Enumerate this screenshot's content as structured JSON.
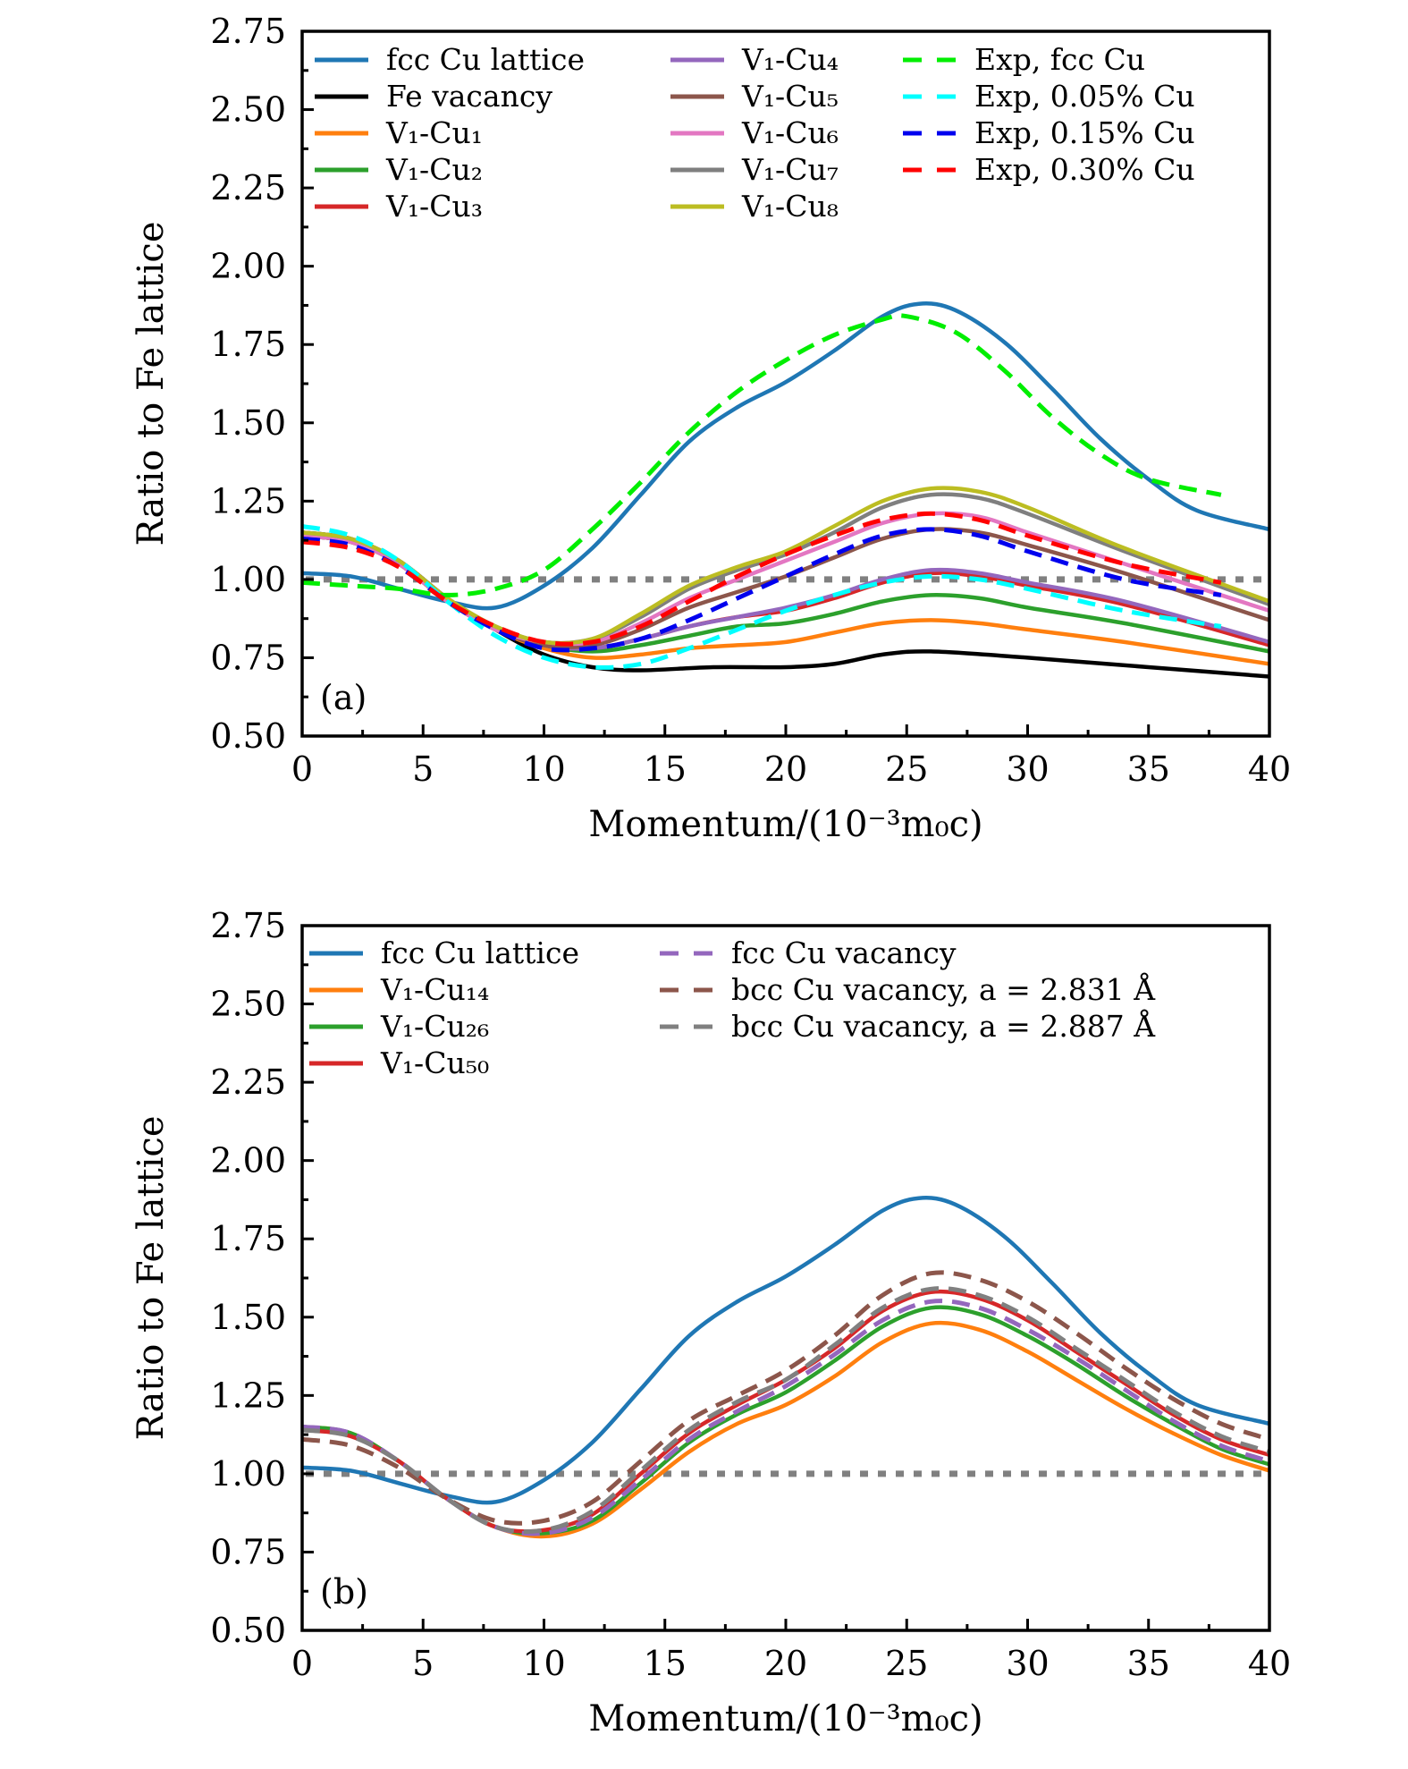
{
  "chart_data": [
    {
      "type": "line",
      "panel_label": "(a)",
      "title": "",
      "xlabel": "Momentum/(10⁻³m₀c)",
      "ylabel": "Ratio to Fe lattice",
      "xlim": [
        0,
        40
      ],
      "ylim": [
        0.5,
        2.75
      ],
      "xticks": [
        "0",
        "5",
        "10",
        "15",
        "20",
        "25",
        "30",
        "35",
        "40"
      ],
      "yticks": [
        "0.50",
        "0.75",
        "1.00",
        "1.25",
        "1.50",
        "1.75",
        "2.00",
        "2.25",
        "2.50",
        "2.75"
      ],
      "grid": false,
      "legend_position": "top",
      "reference_line": {
        "y": 1.0,
        "color": "#808080",
        "style": "dotted"
      },
      "series": [
        {
          "name": "fcc Cu lattice",
          "color": "#1f77b4",
          "style": "solid",
          "x": [
            0,
            2,
            4,
            6,
            8,
            10,
            12,
            14,
            16,
            18,
            20,
            22,
            24,
            25.5,
            27,
            29,
            31,
            33,
            35,
            37,
            40
          ],
          "y": [
            1.02,
            1.01,
            0.97,
            0.93,
            0.91,
            0.98,
            1.1,
            1.27,
            1.44,
            1.55,
            1.63,
            1.73,
            1.84,
            1.88,
            1.86,
            1.76,
            1.61,
            1.45,
            1.32,
            1.22,
            1.16
          ]
        },
        {
          "name": "Fe vacancy",
          "color": "#000000",
          "style": "solid",
          "x": [
            0,
            2,
            4,
            6,
            8,
            10,
            12,
            14,
            17,
            20,
            22,
            24,
            26,
            30,
            35,
            40
          ],
          "y": [
            1.15,
            1.13,
            1.06,
            0.94,
            0.84,
            0.76,
            0.72,
            0.71,
            0.72,
            0.72,
            0.73,
            0.76,
            0.77,
            0.75,
            0.72,
            0.69
          ]
        },
        {
          "name": "V₁-Cu₁",
          "color": "#ff7f0e",
          "style": "solid",
          "x": [
            0,
            2,
            4,
            6,
            8,
            10,
            12,
            14,
            16,
            18,
            20,
            22,
            24,
            26,
            28,
            30,
            34,
            40
          ],
          "y": [
            1.14,
            1.12,
            1.05,
            0.93,
            0.84,
            0.78,
            0.75,
            0.76,
            0.78,
            0.79,
            0.8,
            0.83,
            0.86,
            0.87,
            0.86,
            0.84,
            0.8,
            0.73
          ]
        },
        {
          "name": "V₁-Cu₂",
          "color": "#2ca02c",
          "style": "solid",
          "x": [
            0,
            2,
            4,
            6,
            8,
            10,
            12,
            14,
            16,
            18,
            20,
            22,
            24,
            26,
            28,
            30,
            34,
            40
          ],
          "y": [
            1.14,
            1.12,
            1.05,
            0.93,
            0.84,
            0.79,
            0.77,
            0.79,
            0.82,
            0.85,
            0.86,
            0.89,
            0.93,
            0.95,
            0.94,
            0.91,
            0.86,
            0.77
          ]
        },
        {
          "name": "V₁-Cu₃",
          "color": "#d62728",
          "style": "solid",
          "x": [
            0,
            2,
            4,
            6,
            8,
            10,
            12,
            14,
            16,
            18,
            20,
            22,
            24,
            26,
            28,
            30,
            34,
            40
          ],
          "y": [
            1.14,
            1.12,
            1.05,
            0.93,
            0.84,
            0.79,
            0.78,
            0.81,
            0.85,
            0.88,
            0.9,
            0.94,
            0.99,
            1.02,
            1.01,
            0.98,
            0.92,
            0.79
          ]
        },
        {
          "name": "V₁-Cu₄",
          "color": "#9467bd",
          "style": "solid",
          "x": [
            0,
            2,
            4,
            6,
            8,
            10,
            12,
            14,
            16,
            18,
            20,
            22,
            24,
            26,
            28,
            30,
            34,
            40
          ],
          "y": [
            1.14,
            1.12,
            1.05,
            0.93,
            0.84,
            0.79,
            0.78,
            0.81,
            0.85,
            0.88,
            0.91,
            0.95,
            1.0,
            1.03,
            1.02,
            0.99,
            0.93,
            0.8
          ]
        },
        {
          "name": "V₁-Cu₅",
          "color": "#8c564b",
          "style": "solid",
          "x": [
            0,
            2,
            4,
            6,
            8,
            10,
            12,
            14,
            16,
            18,
            20,
            22,
            24,
            26,
            28,
            30,
            34,
            40
          ],
          "y": [
            1.14,
            1.12,
            1.05,
            0.93,
            0.84,
            0.79,
            0.79,
            0.84,
            0.91,
            0.96,
            1.01,
            1.07,
            1.13,
            1.16,
            1.15,
            1.11,
            1.02,
            0.87
          ]
        },
        {
          "name": "V₁-Cu₆",
          "color": "#e377c2",
          "style": "solid",
          "x": [
            0,
            2,
            4,
            6,
            8,
            10,
            12,
            14,
            16,
            18,
            20,
            22,
            24,
            26,
            28,
            30,
            34,
            40
          ],
          "y": [
            1.14,
            1.12,
            1.05,
            0.93,
            0.84,
            0.8,
            0.8,
            0.86,
            0.94,
            1.0,
            1.06,
            1.12,
            1.18,
            1.21,
            1.2,
            1.15,
            1.05,
            0.9
          ]
        },
        {
          "name": "V₁-Cu₇",
          "color": "#7f7f7f",
          "style": "solid",
          "x": [
            0,
            2,
            4,
            6,
            8,
            10,
            12,
            14,
            16,
            18,
            20,
            22,
            24,
            26,
            28,
            30,
            34,
            40
          ],
          "y": [
            1.15,
            1.13,
            1.06,
            0.94,
            0.85,
            0.8,
            0.81,
            0.88,
            0.97,
            1.03,
            1.08,
            1.15,
            1.23,
            1.27,
            1.26,
            1.21,
            1.09,
            0.92
          ]
        },
        {
          "name": "V₁-Cu₈",
          "color": "#bcbd22",
          "style": "solid",
          "x": [
            0,
            2,
            4,
            6,
            8,
            10,
            12,
            14,
            16,
            18,
            20,
            22,
            24,
            26,
            28,
            30,
            34,
            40
          ],
          "y": [
            1.15,
            1.13,
            1.06,
            0.94,
            0.85,
            0.8,
            0.81,
            0.89,
            0.98,
            1.04,
            1.09,
            1.17,
            1.25,
            1.29,
            1.28,
            1.23,
            1.1,
            0.93
          ]
        },
        {
          "name": "Exp, fcc Cu",
          "color": "#00ee00",
          "style": "dashed",
          "x": [
            0,
            2,
            4,
            6,
            8,
            10,
            12,
            14,
            16,
            18,
            20,
            22,
            24,
            25,
            27,
            29,
            31,
            33,
            35,
            38
          ],
          "y": [
            0.99,
            0.98,
            0.97,
            0.95,
            0.97,
            1.03,
            1.16,
            1.31,
            1.47,
            1.6,
            1.7,
            1.78,
            1.83,
            1.84,
            1.79,
            1.67,
            1.52,
            1.4,
            1.32,
            1.27
          ]
        },
        {
          "name": "Exp, 0.05% Cu",
          "color": "#00ffff",
          "style": "dashed",
          "x": [
            0,
            2,
            4,
            6,
            8,
            10,
            12,
            14,
            16,
            18,
            20,
            22,
            24,
            26,
            28,
            30,
            34,
            38
          ],
          "y": [
            1.17,
            1.14,
            1.06,
            0.93,
            0.82,
            0.75,
            0.72,
            0.73,
            0.78,
            0.84,
            0.9,
            0.95,
            0.99,
            1.01,
            1.0,
            0.97,
            0.9,
            0.85
          ]
        },
        {
          "name": "Exp, 0.15% Cu",
          "color": "#0000ee",
          "style": "dashed",
          "x": [
            0,
            2,
            4,
            6,
            8,
            10,
            12,
            14,
            16,
            18,
            20,
            22,
            24,
            26,
            28,
            30,
            34,
            38
          ],
          "y": [
            1.13,
            1.11,
            1.04,
            0.93,
            0.84,
            0.78,
            0.78,
            0.81,
            0.87,
            0.94,
            1.01,
            1.08,
            1.14,
            1.16,
            1.14,
            1.09,
            1.0,
            0.95
          ]
        },
        {
          "name": "Exp, 0.30% Cu",
          "color": "#ff0000",
          "style": "dashed",
          "x": [
            0,
            2,
            4,
            6,
            8,
            10,
            12,
            14,
            16,
            18,
            20,
            22,
            24,
            26,
            28,
            30,
            34,
            38
          ],
          "y": [
            1.12,
            1.1,
            1.04,
            0.93,
            0.85,
            0.8,
            0.8,
            0.85,
            0.93,
            1.01,
            1.08,
            1.14,
            1.19,
            1.21,
            1.19,
            1.14,
            1.05,
            0.99
          ]
        }
      ]
    },
    {
      "type": "line",
      "panel_label": "(b)",
      "title": "",
      "xlabel": "Momentum/(10⁻³m₀c)",
      "ylabel": "Ratio to Fe lattice",
      "xlim": [
        0,
        40
      ],
      "ylim": [
        0.5,
        2.75
      ],
      "xticks": [
        "0",
        "5",
        "10",
        "15",
        "20",
        "25",
        "30",
        "35",
        "40"
      ],
      "yticks": [
        "0.50",
        "0.75",
        "1.00",
        "1.25",
        "1.50",
        "1.75",
        "2.00",
        "2.25",
        "2.50",
        "2.75"
      ],
      "grid": false,
      "legend_position": "top",
      "reference_line": {
        "y": 1.0,
        "color": "#808080",
        "style": "dotted"
      },
      "series": [
        {
          "name": "fcc Cu lattice",
          "color": "#1f77b4",
          "style": "solid",
          "x": [
            0,
            2,
            4,
            6,
            8,
            10,
            12,
            14,
            16,
            18,
            20,
            22,
            24,
            25.5,
            27,
            29,
            31,
            33,
            35,
            37,
            40
          ],
          "y": [
            1.02,
            1.01,
            0.97,
            0.93,
            0.91,
            0.98,
            1.1,
            1.27,
            1.44,
            1.55,
            1.63,
            1.73,
            1.84,
            1.88,
            1.86,
            1.76,
            1.61,
            1.45,
            1.32,
            1.22,
            1.16
          ]
        },
        {
          "name": "V₁-Cu₁₄",
          "color": "#ff7f0e",
          "style": "solid",
          "x": [
            0,
            2,
            4,
            6,
            8,
            10,
            12,
            14,
            16,
            18,
            20,
            22,
            24,
            26,
            28,
            30,
            32,
            34,
            36,
            38,
            40
          ],
          "y": [
            1.15,
            1.13,
            1.04,
            0.92,
            0.83,
            0.8,
            0.84,
            0.95,
            1.07,
            1.16,
            1.22,
            1.31,
            1.42,
            1.48,
            1.46,
            1.39,
            1.3,
            1.21,
            1.13,
            1.06,
            1.01
          ]
        },
        {
          "name": "V₁-Cu₂₆",
          "color": "#2ca02c",
          "style": "solid",
          "x": [
            0,
            2,
            4,
            6,
            8,
            10,
            12,
            14,
            16,
            18,
            20,
            22,
            24,
            26,
            28,
            30,
            32,
            34,
            36,
            38,
            40
          ],
          "y": [
            1.15,
            1.13,
            1.04,
            0.92,
            0.83,
            0.81,
            0.85,
            0.97,
            1.1,
            1.19,
            1.26,
            1.36,
            1.47,
            1.53,
            1.51,
            1.44,
            1.35,
            1.25,
            1.16,
            1.08,
            1.03
          ]
        },
        {
          "name": "V₁-Cu₅₀",
          "color": "#d62728",
          "style": "solid",
          "x": [
            0,
            2,
            4,
            6,
            8,
            10,
            12,
            14,
            16,
            18,
            20,
            22,
            24,
            26,
            28,
            30,
            32,
            34,
            36,
            38,
            40
          ],
          "y": [
            1.14,
            1.12,
            1.04,
            0.92,
            0.83,
            0.82,
            0.87,
            1.0,
            1.13,
            1.22,
            1.3,
            1.4,
            1.52,
            1.58,
            1.56,
            1.49,
            1.39,
            1.29,
            1.19,
            1.11,
            1.06
          ]
        },
        {
          "name": "fcc Cu vacancy",
          "color": "#9467bd",
          "style": "dashed",
          "x": [
            0,
            2,
            4,
            6,
            8,
            10,
            12,
            14,
            16,
            18,
            20,
            22,
            24,
            26,
            28,
            30,
            32,
            34,
            36,
            38,
            40
          ],
          "y": [
            1.15,
            1.13,
            1.04,
            0.92,
            0.83,
            0.81,
            0.86,
            0.98,
            1.11,
            1.2,
            1.28,
            1.38,
            1.49,
            1.55,
            1.53,
            1.46,
            1.37,
            1.27,
            1.17,
            1.09,
            1.04
          ]
        },
        {
          "name": "bcc Cu vacancy, a = 2.831 Å",
          "color": "#8c564b",
          "style": "dashed",
          "x": [
            0,
            2,
            4,
            6,
            8,
            10,
            12,
            14,
            16,
            18,
            20,
            22,
            24,
            26,
            28,
            30,
            32,
            34,
            36,
            38,
            40
          ],
          "y": [
            1.11,
            1.09,
            1.02,
            0.92,
            0.85,
            0.85,
            0.91,
            1.04,
            1.17,
            1.25,
            1.33,
            1.44,
            1.57,
            1.64,
            1.62,
            1.55,
            1.45,
            1.34,
            1.24,
            1.16,
            1.11
          ]
        },
        {
          "name": "bcc Cu vacancy, a = 2.887 Å",
          "color": "#808080",
          "style": "dashed",
          "x": [
            0,
            2,
            4,
            6,
            8,
            10,
            12,
            14,
            16,
            18,
            20,
            22,
            24,
            26,
            28,
            30,
            32,
            34,
            36,
            38,
            40
          ],
          "y": [
            1.14,
            1.12,
            1.04,
            0.92,
            0.83,
            0.82,
            0.88,
            1.01,
            1.14,
            1.23,
            1.3,
            1.41,
            1.53,
            1.59,
            1.57,
            1.5,
            1.4,
            1.3,
            1.2,
            1.12,
            1.07
          ]
        }
      ]
    }
  ]
}
